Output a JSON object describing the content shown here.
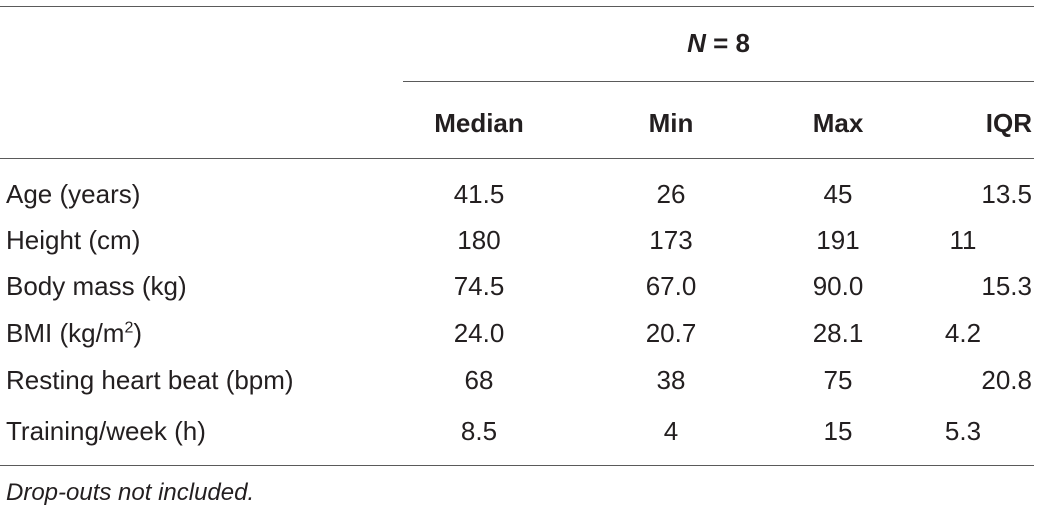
{
  "table": {
    "group_header_symbol": "N",
    "group_header_rest": " = 8",
    "columns": [
      "Median",
      "Min",
      "Max",
      "IQR"
    ],
    "rows": [
      {
        "label": "Age (years)",
        "values": [
          "41.5",
          "26",
          "45",
          "13.5"
        ]
      },
      {
        "label": "Height (cm)",
        "values": [
          "180",
          "173",
          "191",
          "11"
        ]
      },
      {
        "label": "Body mass (kg)",
        "values": [
          "74.5",
          "67.0",
          "90.0",
          "15.3"
        ]
      },
      {
        "label_before_sup": "BMI (kg/m",
        "label_sup": "2",
        "label_after_sup": ")",
        "values": [
          "24.0",
          "20.7",
          "28.1",
          "4.2"
        ]
      },
      {
        "label": "Resting heart beat (bpm)",
        "values": [
          "68",
          "38",
          "75",
          "20.8"
        ]
      },
      {
        "label": "Training/week (h)",
        "values": [
          "8.5",
          "4",
          "15",
          "5.3"
        ]
      }
    ],
    "footnote": "Drop-outs not included."
  }
}
